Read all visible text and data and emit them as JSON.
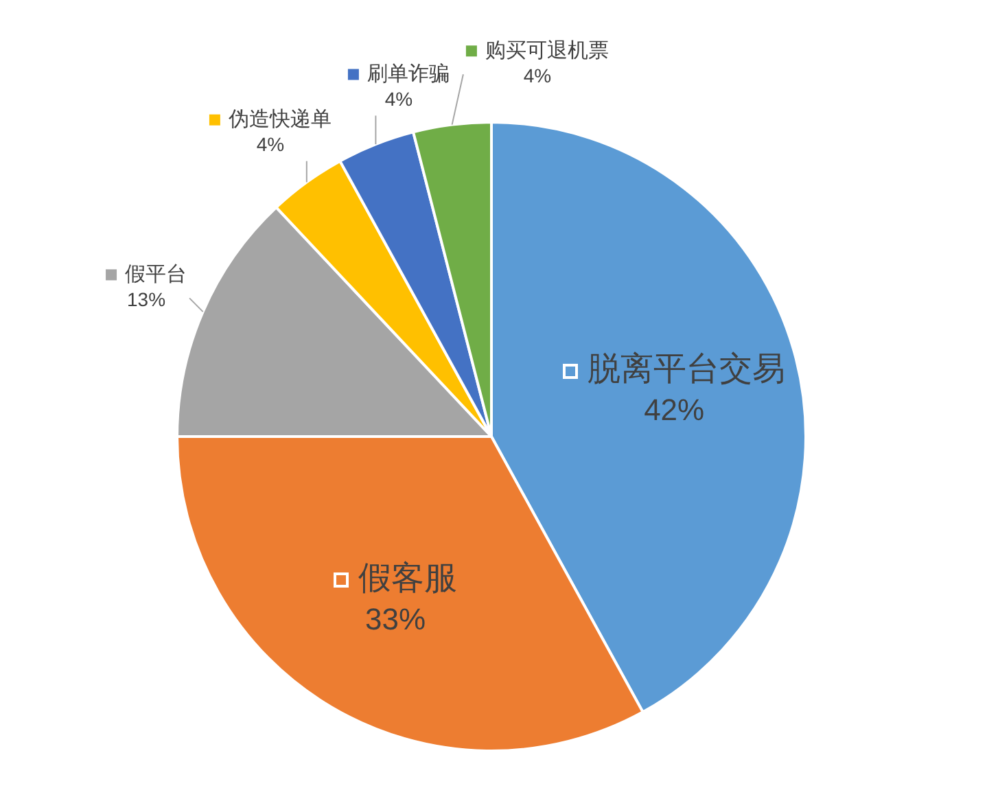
{
  "chart_data": {
    "type": "pie",
    "categories": [
      "脱离平台交易",
      "假客服",
      "假平台",
      "伪造快递单",
      "刷单诈骗",
      "购买可退机票"
    ],
    "values": [
      42,
      33,
      13,
      4,
      4,
      4
    ],
    "colors": [
      "#5b9bd5",
      "#ed7d31",
      "#a5a5a5",
      "#ffc000",
      "#4472c4",
      "#70ad47"
    ],
    "value_labels": [
      "42%",
      "33%",
      "13%",
      "4%",
      "4%",
      "4%"
    ],
    "legend": "top left"
  }
}
